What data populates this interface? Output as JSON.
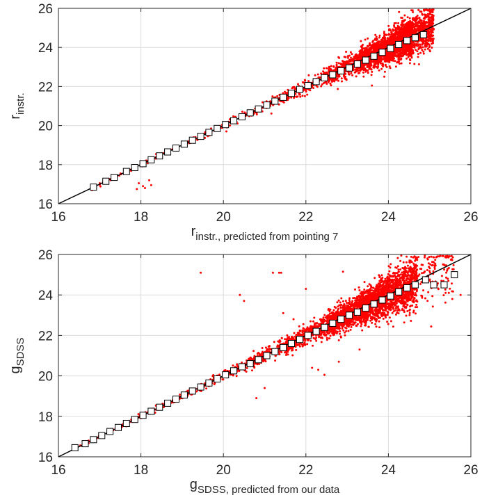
{
  "chart_data": [
    {
      "type": "scatter",
      "xlabel": "r",
      "xlabel_subscript": "instr., predicted from pointing 7",
      "ylabel": "r",
      "ylabel_subscript": "instr.",
      "xlim": [
        16,
        26
      ],
      "ylim": [
        16,
        26
      ],
      "xticks": [
        "16",
        "18",
        "20",
        "22",
        "24",
        "26"
      ],
      "yticks": [
        "16",
        "18",
        "20",
        "22",
        "24",
        "26"
      ],
      "grid": true,
      "point_color": "#ff0000",
      "identity_line": [
        [
          16,
          16
        ],
        [
          26,
          26
        ]
      ],
      "binned_medians": {
        "x": [
          16.85,
          17.15,
          17.35,
          17.65,
          17.85,
          18.05,
          18.25,
          18.45,
          18.65,
          18.85,
          19.05,
          19.25,
          19.45,
          19.65,
          19.85,
          20.05,
          20.25,
          20.45,
          20.65,
          20.85,
          21.05,
          21.25,
          21.45,
          21.65,
          21.85,
          22.05,
          22.25,
          22.45,
          22.65,
          22.85,
          23.05,
          23.25,
          23.45,
          23.65,
          23.85,
          24.05,
          24.25,
          24.45,
          24.65,
          24.85
        ],
        "y": [
          16.85,
          17.15,
          17.35,
          17.65,
          17.85,
          18.05,
          18.25,
          18.45,
          18.65,
          18.85,
          19.05,
          19.25,
          19.45,
          19.65,
          19.85,
          20.05,
          20.25,
          20.45,
          20.65,
          20.85,
          21.05,
          21.25,
          21.45,
          21.65,
          21.85,
          22.05,
          22.25,
          22.45,
          22.6,
          22.8,
          22.95,
          23.15,
          23.35,
          23.55,
          23.75,
          23.95,
          24.15,
          24.35,
          24.5,
          24.65
        ]
      },
      "scatter_scale": 0.065,
      "scatter_density": [
        [
          16.8,
          17.5,
          12
        ],
        [
          17.5,
          19,
          45
        ],
        [
          19,
          20.5,
          80
        ],
        [
          20.5,
          21.5,
          110
        ],
        [
          21.5,
          22.5,
          190
        ],
        [
          22.5,
          23.3,
          420
        ],
        [
          23.3,
          24,
          900
        ],
        [
          24,
          24.6,
          1300
        ],
        [
          24.6,
          25.1,
          500
        ]
      ],
      "outliers": [
        [
          17.9,
          16.75
        ],
        [
          18.05,
          16.9
        ],
        [
          18.1,
          16.8
        ],
        [
          18.2,
          17.2
        ],
        [
          18.25,
          16.95
        ],
        [
          17.95,
          17.05
        ],
        [
          21.85,
          21.9
        ],
        [
          23.6,
          22.05
        ],
        [
          23.9,
          22.5
        ]
      ]
    },
    {
      "type": "scatter",
      "xlabel": "g",
      "xlabel_subscript": "SDSS, predicted from our data",
      "ylabel": "g",
      "ylabel_subscript": "SDSS",
      "xlim": [
        16,
        26
      ],
      "ylim": [
        16,
        26
      ],
      "xticks": [
        "16",
        "18",
        "20",
        "22",
        "24",
        "26"
      ],
      "yticks": [
        "16",
        "18",
        "20",
        "22",
        "24",
        "26"
      ],
      "grid": true,
      "point_color": "#ff0000",
      "identity_line": [
        [
          16,
          16
        ],
        [
          26,
          26
        ]
      ],
      "binned_medians": {
        "x": [
          16.4,
          16.65,
          16.85,
          17.05,
          17.25,
          17.45,
          17.65,
          17.85,
          18.05,
          18.25,
          18.45,
          18.65,
          18.85,
          19.05,
          19.25,
          19.45,
          19.65,
          19.85,
          20.05,
          20.25,
          20.45,
          20.65,
          20.85,
          21.05,
          21.25,
          21.45,
          21.65,
          21.85,
          22.05,
          22.25,
          22.45,
          22.65,
          22.85,
          23.05,
          23.25,
          23.45,
          23.65,
          23.85,
          24.05,
          24.25,
          24.45,
          24.65,
          24.9,
          25.1,
          25.35,
          25.6
        ],
        "y": [
          16.45,
          16.65,
          16.85,
          17.05,
          17.25,
          17.45,
          17.65,
          17.85,
          18.05,
          18.25,
          18.45,
          18.65,
          18.85,
          19.05,
          19.25,
          19.45,
          19.65,
          19.85,
          20.05,
          20.25,
          20.45,
          20.6,
          20.8,
          21.0,
          21.2,
          21.4,
          21.6,
          21.8,
          22.0,
          22.2,
          22.4,
          22.6,
          22.8,
          23.0,
          23.15,
          23.35,
          23.55,
          23.75,
          23.95,
          24.15,
          24.35,
          24.5,
          24.75,
          24.5,
          24.5,
          25.0
        ]
      },
      "scatter_scale": 0.09,
      "scatter_density": [
        [
          16.5,
          17.5,
          40
        ],
        [
          17.5,
          19,
          110
        ],
        [
          19,
          20.5,
          180
        ],
        [
          20.5,
          21.5,
          250
        ],
        [
          21.5,
          22.5,
          480
        ],
        [
          22.5,
          23.3,
          900
        ],
        [
          23.3,
          24,
          1000
        ],
        [
          24,
          24.7,
          800
        ],
        [
          24.7,
          25.6,
          120
        ]
      ],
      "outliers": [
        [
          19.45,
          25.1
        ],
        [
          21.2,
          25.1
        ],
        [
          21.35,
          25.1
        ],
        [
          21.4,
          25.1
        ],
        [
          22.9,
          25.15
        ],
        [
          20.4,
          24.0
        ],
        [
          20.5,
          23.7
        ],
        [
          21.45,
          23.1
        ],
        [
          21.7,
          22.8
        ],
        [
          22.0,
          24.3
        ],
        [
          22.15,
          20.4
        ],
        [
          22.3,
          20.3
        ],
        [
          22.45,
          20.05
        ],
        [
          22.8,
          20.7
        ],
        [
          23.3,
          21.3
        ],
        [
          25.55,
          23.8
        ],
        [
          25.75,
          24.0
        ],
        [
          20.8,
          18.9
        ],
        [
          21.0,
          19.4
        ]
      ]
    }
  ]
}
